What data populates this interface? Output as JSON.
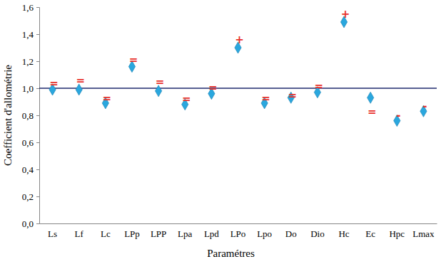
{
  "chart_data": {
    "type": "scatter",
    "x_label": "Paramétres",
    "y_label": "Coefficient d'allométrie",
    "categories": [
      "Ls",
      "Lf",
      "Lc",
      "LPp",
      "LPP",
      "Lpa",
      "Lpd",
      "LPo",
      "Lpo",
      "Do",
      "Dio",
      "Hc",
      "Ec",
      "Hpc",
      "Lmax"
    ],
    "values": [
      0.99,
      0.99,
      0.89,
      1.16,
      0.98,
      0.88,
      0.96,
      1.3,
      0.89,
      0.93,
      0.97,
      1.49,
      0.93,
      0.76,
      0.83
    ],
    "color": "#2aa7de",
    "marker": "diamond",
    "hline": 1.0,
    "hline_color": "#1f2a6e",
    "annotation_color": "#e8312b",
    "annotations": [
      {
        "x": "Ls",
        "y": 1.04,
        "text": "="
      },
      {
        "x": "Lf",
        "y": 1.06,
        "text": "="
      },
      {
        "x": "Lc",
        "y": 0.93,
        "text": "="
      },
      {
        "x": "LPp",
        "y": 1.21,
        "text": "="
      },
      {
        "x": "LPP",
        "y": 1.05,
        "text": "="
      },
      {
        "x": "Lpa",
        "y": 0.92,
        "text": "="
      },
      {
        "x": "Lpd",
        "y": 1.005,
        "text": "="
      },
      {
        "x": "LPo",
        "y": 1.36,
        "text": "+"
      },
      {
        "x": "Lpo",
        "y": 0.93,
        "text": "="
      },
      {
        "x": "Do",
        "y": 0.95,
        "text": "="
      },
      {
        "x": "Dio",
        "y": 1.015,
        "text": "="
      },
      {
        "x": "Hc",
        "y": 1.55,
        "text": "+"
      },
      {
        "x": "Ec",
        "y": 0.83,
        "text": "="
      },
      {
        "x": "Hpc",
        "y": 0.8,
        "text": "-"
      },
      {
        "x": "Lmax",
        "y": 0.87,
        "text": "-"
      }
    ],
    "ylim": [
      0,
      1.6
    ],
    "yticks": [
      {
        "value": 0,
        "label": "0,0"
      },
      {
        "value": 0.2,
        "label": "0,2"
      },
      {
        "value": 0.4,
        "label": "0,4"
      },
      {
        "value": 0.6,
        "label": "0,6"
      },
      {
        "value": 0.8,
        "label": "0,8"
      },
      {
        "value": 1.0,
        "label": "1,0"
      },
      {
        "value": 1.2,
        "label": "1,2"
      },
      {
        "value": 1.4,
        "label": "1,4"
      },
      {
        "value": 1.6,
        "label": "1,6"
      }
    ],
    "grid": false
  }
}
